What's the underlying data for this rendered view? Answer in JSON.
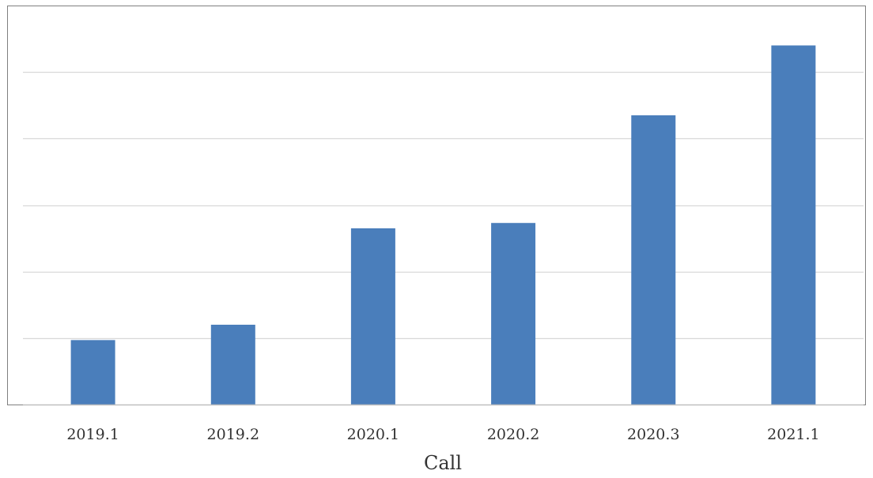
{
  "chart_data": {
    "type": "bar",
    "categories": [
      "2019.1",
      "2019.2",
      "2020.1",
      "2020.2",
      "2020.3",
      "2021.1"
    ],
    "values": [
      0.97,
      1.2,
      2.65,
      2.73,
      4.35,
      5.4
    ],
    "xlabel": "Call",
    "ylabel": "",
    "ylim": [
      0,
      6
    ],
    "y_tick_labels_shown": false,
    "grid": true,
    "legend": "none",
    "colors": {
      "bar": "#4a7ebb",
      "grid": "#d9d9d9",
      "border": "#7f7f7f"
    }
  }
}
